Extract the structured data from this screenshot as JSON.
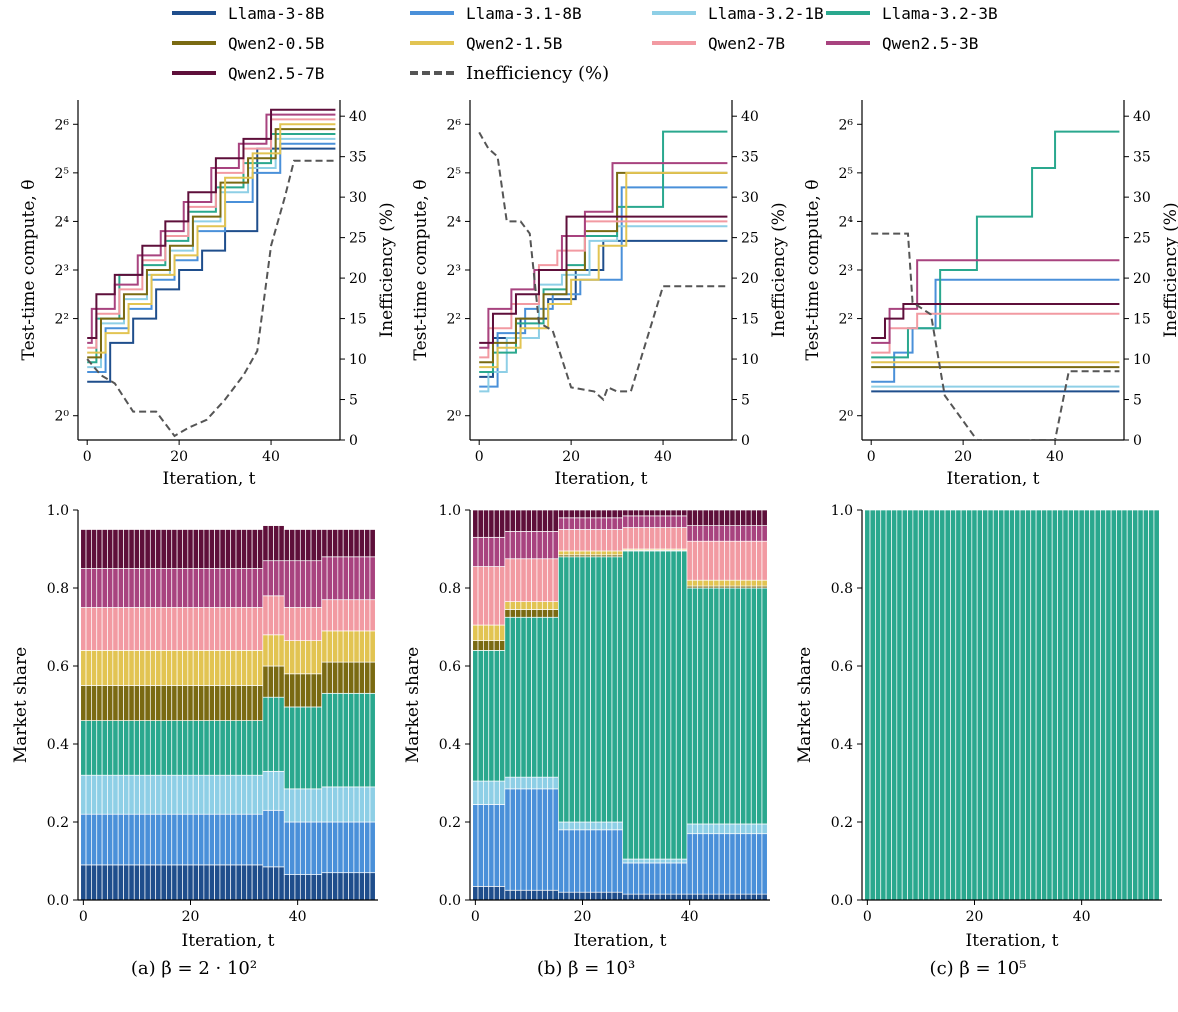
{
  "legend": [
    {
      "label": "Llama-3-8B",
      "color": "#1f4e8c",
      "style": "solid"
    },
    {
      "label": "Llama-3.1-8B",
      "color": "#4a90d9",
      "style": "solid"
    },
    {
      "label": "Llama-3.2-1B",
      "color": "#8ecfe6",
      "style": "solid"
    },
    {
      "label": "Llama-3.2-3B",
      "color": "#2aa88e",
      "style": "solid"
    },
    {
      "label": "Qwen2-0.5B",
      "color": "#7a6a12",
      "style": "solid"
    },
    {
      "label": "Qwen2-1.5B",
      "color": "#e2c452",
      "style": "solid"
    },
    {
      "label": "Qwen2-7B",
      "color": "#f29aa2",
      "style": "solid"
    },
    {
      "label": "Qwen2.5-3B",
      "color": "#a8437f",
      "style": "solid"
    },
    {
      "label": "Qwen2.5-7B",
      "color": "#5e0f3a",
      "style": "solid"
    },
    {
      "label": "Inefficiency (%)",
      "color": "#555555",
      "style": "dashed"
    }
  ],
  "axis_text": {
    "top_xlabel": "Iteration, t",
    "top_ylabel": "Test-time compute, θ",
    "top_y2label": "Inefficiency (%)",
    "bottom_xlabel": "Iteration, t",
    "bottom_ylabel": "Market share",
    "top_yticks": [
      "2⁰",
      "2²",
      "2³",
      "2⁴",
      "2⁵",
      "2⁶"
    ],
    "right_yticks": [
      "0",
      "5",
      "10",
      "15",
      "20",
      "25",
      "30",
      "35",
      "40"
    ],
    "xticks": [
      "0",
      "20",
      "40"
    ],
    "bottom_yticks": [
      "0.0",
      "0.2",
      "0.4",
      "0.6",
      "0.8",
      "1.0"
    ]
  },
  "captions": [
    "(a) β = 2 · 10²",
    "(b) β = 10³",
    "(c) β = 10⁵"
  ],
  "chart_data": [
    {
      "type": "line",
      "title": "",
      "xlabel": "Iteration, t",
      "ylabel": "Test-time compute, θ",
      "y2label": "Inefficiency (%)",
      "xlim": [
        -2,
        55
      ],
      "ylim_log2": [
        -0.5,
        6.5
      ],
      "y2lim": [
        0,
        42
      ],
      "series": [
        {
          "name": "Llama-3-8B",
          "x": [
            0,
            5,
            10,
            15,
            20,
            25,
            30,
            37,
            44,
            54
          ],
          "y": [
            0.7,
            1.5,
            2.0,
            2.6,
            3.0,
            3.4,
            3.8,
            5.5,
            5.5,
            5.5
          ]
        },
        {
          "name": "Llama-3.1-8B",
          "x": [
            0,
            4,
            9,
            14,
            19,
            24,
            30,
            36,
            42,
            54
          ],
          "y": [
            0.9,
            1.8,
            2.2,
            2.8,
            3.2,
            3.8,
            4.4,
            5.0,
            5.6,
            5.6
          ]
        },
        {
          "name": "Llama-3.2-1B",
          "x": [
            0,
            3,
            8,
            13,
            18,
            23,
            29,
            35,
            41,
            54
          ],
          "y": [
            1.0,
            1.9,
            2.4,
            2.9,
            3.4,
            4.0,
            4.6,
            5.1,
            5.7,
            5.7
          ]
        },
        {
          "name": "Llama-3.2-3B",
          "x": [
            0,
            2,
            7,
            12,
            17,
            22,
            28,
            34,
            40,
            54
          ],
          "y": [
            1.1,
            2.0,
            2.9,
            3.1,
            3.6,
            4.2,
            4.7,
            5.2,
            5.8,
            5.8
          ]
        },
        {
          "name": "Qwen2-0.5B",
          "x": [
            0,
            3,
            8,
            13,
            18,
            23,
            29,
            35,
            41,
            54
          ],
          "y": [
            1.2,
            2.0,
            2.5,
            3.0,
            3.5,
            4.1,
            4.8,
            5.3,
            5.9,
            5.9
          ]
        },
        {
          "name": "Qwen2-1.5B",
          "x": [
            0,
            4,
            9,
            14,
            19,
            24,
            30,
            36,
            42,
            54
          ],
          "y": [
            1.3,
            1.7,
            2.3,
            2.9,
            3.3,
            3.9,
            4.9,
            5.4,
            6.0,
            6.0
          ]
        },
        {
          "name": "Qwen2-7B",
          "x": [
            0,
            2,
            7,
            12,
            17,
            22,
            28,
            34,
            40,
            54
          ],
          "y": [
            1.4,
            2.1,
            2.6,
            3.2,
            3.7,
            4.3,
            5.0,
            5.5,
            6.1,
            6.1
          ]
        },
        {
          "name": "Qwen2.5-3B",
          "x": [
            0,
            1,
            6,
            11,
            16,
            21,
            27,
            33,
            39,
            54
          ],
          "y": [
            1.5,
            2.2,
            2.7,
            3.3,
            3.8,
            4.4,
            5.1,
            5.6,
            6.2,
            6.2
          ]
        },
        {
          "name": "Qwen2.5-7B",
          "x": [
            0,
            2,
            6,
            12,
            17,
            22,
            28,
            34,
            40,
            54
          ],
          "y": [
            1.6,
            2.5,
            2.9,
            3.5,
            4.0,
            4.6,
            5.3,
            5.7,
            6.3,
            6.3
          ]
        }
      ],
      "inefficiency": {
        "x": [
          0,
          3,
          6,
          10,
          15,
          19,
          22,
          26,
          30,
          34,
          37,
          40,
          43,
          45,
          54
        ],
        "y": [
          10,
          8,
          7,
          3.5,
          3.5,
          0.5,
          1.5,
          2.5,
          5,
          8,
          11,
          24,
          30,
          34.5,
          34.5
        ]
      }
    },
    {
      "type": "line",
      "title": "",
      "xlabel": "Iteration, t",
      "ylabel": "Test-time compute, θ",
      "y2label": "Inefficiency (%)",
      "xlim": [
        -2,
        55
      ],
      "ylim_log2": [
        -0.5,
        6.5
      ],
      "y2lim": [
        0,
        42
      ],
      "series": [
        {
          "name": "Llama-3-8B",
          "x": [
            0,
            3,
            9,
            15,
            21,
            27,
            54
          ],
          "y": [
            0.8,
            1.6,
            2.0,
            2.4,
            3.0,
            3.6,
            3.6
          ]
        },
        {
          "name": "Llama-3.1-8B",
          "x": [
            0,
            4,
            10,
            16,
            22,
            31,
            54
          ],
          "y": [
            0.6,
            1.7,
            2.2,
            2.5,
            2.8,
            4.7,
            4.7
          ]
        },
        {
          "name": "Llama-3.2-1B",
          "x": [
            0,
            2,
            6,
            13,
            18,
            24,
            30,
            54
          ],
          "y": [
            0.5,
            0.9,
            1.6,
            2.7,
            2.9,
            3.6,
            3.9,
            3.9
          ]
        },
        {
          "name": "Llama-3.2-3B",
          "x": [
            0,
            3,
            8,
            14,
            19,
            23,
            30,
            40,
            54
          ],
          "y": [
            0.9,
            1.3,
            1.9,
            2.6,
            3.1,
            3.7,
            4.3,
            5.85,
            5.85
          ]
        },
        {
          "name": "Qwen2-0.5B",
          "x": [
            0,
            3,
            8,
            14,
            19,
            23,
            30,
            54
          ],
          "y": [
            1.1,
            1.5,
            2.0,
            2.5,
            3.0,
            3.8,
            5.0,
            5.0
          ]
        },
        {
          "name": "Qwen2-1.5B",
          "x": [
            0,
            4,
            9,
            15,
            20,
            26,
            32,
            54
          ],
          "y": [
            1.0,
            1.4,
            1.8,
            2.3,
            2.8,
            3.5,
            5.0,
            5.0
          ]
        },
        {
          "name": "Qwen2-7B",
          "x": [
            0,
            2,
            7,
            13,
            17,
            23,
            54
          ],
          "y": [
            1.2,
            1.8,
            2.3,
            3.1,
            3.4,
            4.0,
            4.0
          ]
        },
        {
          "name": "Qwen2.5-3B",
          "x": [
            0,
            2,
            7,
            12,
            18,
            23,
            29,
            54
          ],
          "y": [
            1.4,
            2.2,
            2.6,
            3.0,
            3.7,
            4.2,
            5.2,
            5.2
          ]
        },
        {
          "name": "Qwen2.5-7B",
          "x": [
            0,
            3,
            8,
            13,
            19,
            54
          ],
          "y": [
            1.5,
            2.1,
            2.5,
            3.0,
            4.1,
            4.1
          ]
        }
      ],
      "inefficiency": {
        "x": [
          0,
          2,
          4,
          6,
          9,
          11,
          13,
          16,
          20,
          25,
          27,
          28,
          30,
          33,
          40,
          54
        ],
        "y": [
          38,
          36,
          35,
          27,
          27,
          25.5,
          14.5,
          13.5,
          6.5,
          6,
          5,
          6.5,
          6,
          6,
          19,
          19
        ]
      }
    },
    {
      "type": "line",
      "title": "",
      "xlabel": "Iteration, t",
      "ylabel": "Test-time compute, θ",
      "y2label": "Inefficiency (%)",
      "xlim": [
        -2,
        55
      ],
      "ylim_log2": [
        -0.5,
        6.5
      ],
      "y2lim": [
        0,
        42
      ],
      "series": [
        {
          "name": "Llama-3-8B",
          "x": [
            0,
            54
          ],
          "y": [
            0.5,
            0.5
          ]
        },
        {
          "name": "Llama-3.1-8B",
          "x": [
            0,
            5,
            9,
            14,
            54
          ],
          "y": [
            0.7,
            1.3,
            1.8,
            2.8,
            2.8
          ]
        },
        {
          "name": "Llama-3.2-1B",
          "x": [
            0,
            54
          ],
          "y": [
            0.6,
            0.6
          ]
        },
        {
          "name": "Llama-3.2-3B",
          "x": [
            0,
            8,
            15,
            23,
            35,
            40,
            54
          ],
          "y": [
            1.2,
            1.8,
            3.0,
            4.1,
            5.1,
            5.85,
            5.85
          ]
        },
        {
          "name": "Qwen2-0.5B",
          "x": [
            0,
            54
          ],
          "y": [
            1.0,
            1.0
          ]
        },
        {
          "name": "Qwen2-1.5B",
          "x": [
            0,
            54
          ],
          "y": [
            1.1,
            1.1
          ]
        },
        {
          "name": "Qwen2-7B",
          "x": [
            0,
            4,
            10,
            54
          ],
          "y": [
            1.3,
            1.8,
            2.1,
            2.1
          ]
        },
        {
          "name": "Qwen2.5-3B",
          "x": [
            0,
            4,
            10,
            54
          ],
          "y": [
            1.5,
            2.2,
            3.2,
            3.2
          ]
        },
        {
          "name": "Qwen2.5-7B",
          "x": [
            0,
            3,
            7,
            54
          ],
          "y": [
            1.6,
            2.0,
            2.3,
            2.3
          ]
        }
      ],
      "inefficiency": {
        "x": [
          0,
          8,
          9,
          13,
          16,
          23,
          24,
          28,
          30,
          35,
          40,
          43,
          54
        ],
        "y": [
          25.5,
          25.5,
          17,
          15.5,
          5.5,
          0,
          0,
          -1,
          -1,
          0,
          0,
          8.5,
          8.5
        ]
      }
    },
    {
      "type": "bar",
      "stacked": true,
      "title": "",
      "xlabel": "Iteration, t",
      "ylabel": "Market share",
      "xlim": [
        -1,
        55
      ],
      "ylim": [
        0,
        1
      ],
      "series_order": [
        "Llama-3-8B",
        "Llama-3.1-8B",
        "Llama-3.2-1B",
        "Llama-3.2-3B",
        "Qwen2-0.5B",
        "Qwen2-1.5B",
        "Qwen2-7B",
        "Qwen2.5-3B",
        "Qwen2.5-7B"
      ],
      "segments": [
        {
          "from": 0,
          "to": 33,
          "shares": [
            0.09,
            0.13,
            0.1,
            0.14,
            0.09,
            0.09,
            0.11,
            0.1,
            0.1
          ]
        },
        {
          "from": 34,
          "to": 37,
          "shares": [
            0.085,
            0.145,
            0.1,
            0.19,
            0.08,
            0.08,
            0.1,
            0.09,
            0.09
          ]
        },
        {
          "from": 38,
          "to": 44,
          "shares": [
            0.065,
            0.135,
            0.085,
            0.21,
            0.085,
            0.085,
            0.085,
            0.12,
            0.08
          ]
        },
        {
          "from": 45,
          "to": 54,
          "shares": [
            0.07,
            0.13,
            0.09,
            0.24,
            0.08,
            0.08,
            0.08,
            0.11,
            0.07
          ]
        }
      ]
    },
    {
      "type": "bar",
      "stacked": true,
      "title": "",
      "xlabel": "Iteration, t",
      "ylabel": "Market share",
      "xlim": [
        -1,
        55
      ],
      "ylim": [
        0,
        1
      ],
      "series_order": [
        "Llama-3-8B",
        "Llama-3.1-8B",
        "Llama-3.2-1B",
        "Llama-3.2-3B",
        "Qwen2-0.5B",
        "Qwen2-1.5B",
        "Qwen2-7B",
        "Qwen2.5-3B",
        "Qwen2.5-7B"
      ],
      "segments": [
        {
          "from": 0,
          "to": 5,
          "shares": [
            0.035,
            0.21,
            0.06,
            0.335,
            0.025,
            0.04,
            0.15,
            0.075,
            0.07
          ]
        },
        {
          "from": 6,
          "to": 15,
          "shares": [
            0.025,
            0.26,
            0.03,
            0.41,
            0.02,
            0.02,
            0.11,
            0.07,
            0.055
          ]
        },
        {
          "from": 16,
          "to": 27,
          "shares": [
            0.02,
            0.16,
            0.02,
            0.68,
            0.005,
            0.01,
            0.055,
            0.03,
            0.02
          ]
        },
        {
          "from": 28,
          "to": 39,
          "shares": [
            0.015,
            0.08,
            0.01,
            0.79,
            0.002,
            0.003,
            0.055,
            0.03,
            0.015
          ]
        },
        {
          "from": 40,
          "to": 54,
          "shares": [
            0.015,
            0.155,
            0.025,
            0.605,
            0.005,
            0.015,
            0.1,
            0.04,
            0.04
          ]
        }
      ]
    },
    {
      "type": "bar",
      "stacked": true,
      "title": "",
      "xlabel": "Iteration, t",
      "ylabel": "Market share",
      "xlim": [
        -1,
        55
      ],
      "ylim": [
        0,
        1
      ],
      "series_order": [
        "Llama-3-8B",
        "Llama-3.1-8B",
        "Llama-3.2-1B",
        "Llama-3.2-3B",
        "Qwen2-0.5B",
        "Qwen2-1.5B",
        "Qwen2-7B",
        "Qwen2.5-3B",
        "Qwen2.5-7B"
      ],
      "segments": [
        {
          "from": 0,
          "to": 54,
          "shares": [
            0,
            0,
            0,
            1.0,
            0,
            0,
            0,
            0,
            0
          ]
        }
      ]
    }
  ]
}
